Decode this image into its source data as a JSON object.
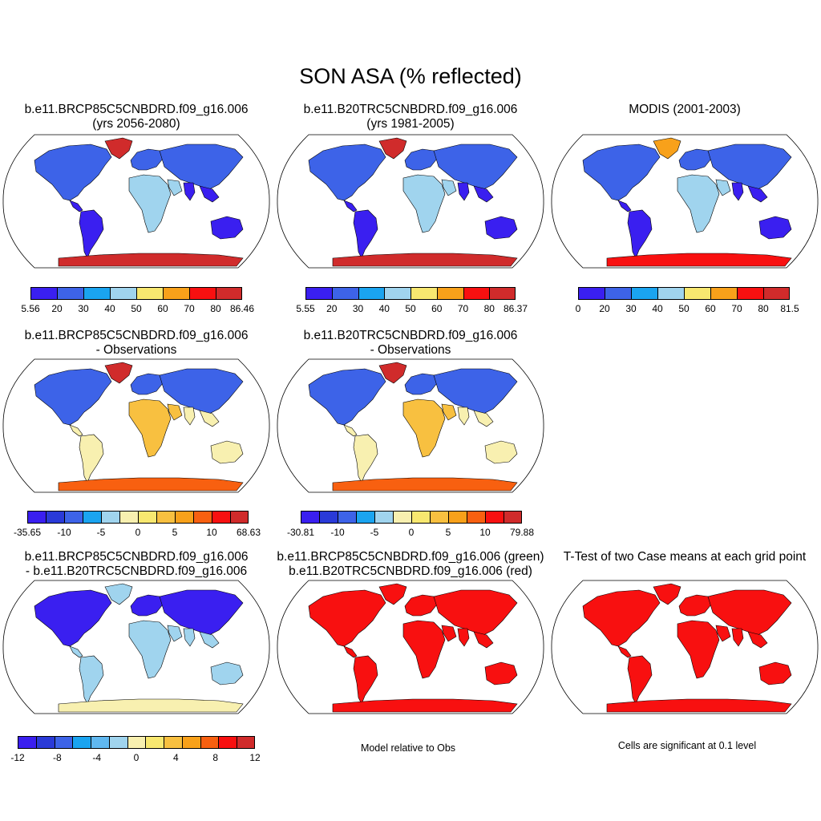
{
  "title": "SON ASA (% reflected)",
  "panels": [
    {
      "id": "p1",
      "title_lines": [
        "b.e11.BRCP85C5CNBDRD.f09_g16.006",
        "(yrs 2056-2080)"
      ],
      "palette": "abs"
    },
    {
      "id": "p2",
      "title_lines": [
        "b.e11.B20TRC5CNBDRD.f09_g16.006",
        "(yrs 1981-2005)"
      ],
      "palette": "abs"
    },
    {
      "id": "p3",
      "title_lines": [
        "",
        "MODIS (2001-2003)"
      ],
      "palette": "abs"
    },
    {
      "id": "p4",
      "title_lines": [
        "b.e11.BRCP85C5CNBDRD.f09_g16.006",
        "- Observations"
      ],
      "palette": "diff"
    },
    {
      "id": "p5",
      "title_lines": [
        "b.e11.B20TRC5CNBDRD.f09_g16.006",
        "- Observations"
      ],
      "palette": "diff"
    },
    {
      "id": "p7",
      "title_lines": [
        "b.e11.BRCP85C5CNBDRD.f09_g16.006",
        "- b.e11.B20TRC5CNBDRD.f09_g16.006"
      ],
      "palette": "diff2"
    },
    {
      "id": "p8",
      "title_lines": [
        "b.e11.BRCP85C5CNBDRD.f09_g16.006 (green)",
        "b.e11.B20TRC5CNBDRD.f09_g16.006 (red)"
      ],
      "palette": "greenred"
    },
    {
      "id": "p9",
      "title_lines": [
        "",
        "T-Test of two Case means at each grid point"
      ],
      "palette": "red"
    }
  ],
  "colorbars": {
    "cb1": {
      "labels": [
        "5.56",
        "20",
        "30",
        "40",
        "50",
        "60",
        "70",
        "80",
        "86.46"
      ],
      "colors": [
        "#3a1ff0",
        "#3d63e8",
        "#1aa4f0",
        "#a0d4ee",
        "#f8e870",
        "#f8a11a",
        "#f81010",
        "#d02b2b"
      ]
    },
    "cb2": {
      "labels": [
        "5.55",
        "20",
        "30",
        "40",
        "50",
        "60",
        "70",
        "80",
        "86.37"
      ],
      "colors": [
        "#3a1ff0",
        "#3d63e8",
        "#1aa4f0",
        "#a0d4ee",
        "#f8e870",
        "#f8a11a",
        "#f81010",
        "#d02b2b"
      ]
    },
    "cb3": {
      "labels": [
        "0",
        "20",
        "30",
        "40",
        "50",
        "60",
        "70",
        "80",
        "81.5"
      ],
      "colors": [
        "#3a1ff0",
        "#3d63e8",
        "#1aa4f0",
        "#a0d4ee",
        "#f8e870",
        "#f8a11a",
        "#f81010",
        "#d02b2b"
      ]
    },
    "cb4": {
      "labels": [
        "-35.65",
        "-10",
        "-5",
        "0",
        "5",
        "10",
        "68.63"
      ],
      "colors": [
        "#3a1ff0",
        "#2a3ad8",
        "#3d63e8",
        "#1aa4f0",
        "#a0d4ee",
        "#f8f0b0",
        "#f8e870",
        "#f8c040",
        "#f8a11a",
        "#f86010",
        "#f81010",
        "#d02b2b"
      ]
    },
    "cb5": {
      "labels": [
        "-30.81",
        "-10",
        "-5",
        "0",
        "5",
        "10",
        "79.88"
      ],
      "colors": [
        "#3a1ff0",
        "#2a3ad8",
        "#3d63e8",
        "#1aa4f0",
        "#a0d4ee",
        "#f8f0b0",
        "#f8e870",
        "#f8c040",
        "#f8a11a",
        "#f86010",
        "#f81010",
        "#d02b2b"
      ]
    },
    "cb7": {
      "labels": [
        "-12",
        "-8",
        "-4",
        "0",
        "4",
        "8",
        "12"
      ],
      "colors": [
        "#3a1ff0",
        "#2a3ad8",
        "#3d63e8",
        "#1aa4f0",
        "#60b8f0",
        "#a0d4ee",
        "#f8f0b0",
        "#f8e870",
        "#f8c040",
        "#f8a11a",
        "#f86010",
        "#f81010",
        "#d02b2b"
      ]
    }
  },
  "notes": {
    "model_relative": "Model relative to Obs",
    "significance": "Cells are significant at 0.1 level"
  }
}
